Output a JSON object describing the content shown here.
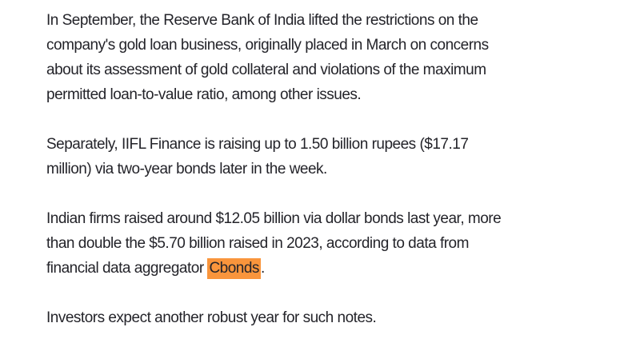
{
  "page": {
    "background_color": "#ffffff",
    "text_color": "#24242a",
    "highlight_color": "#F9953C"
  },
  "article": {
    "paragraphs": [
      {
        "lines": [
          "In September, the Reserve Bank of India lifted the restrictions on the",
          "company's gold loan business, originally placed in March on concerns",
          "about its assessment of gold collateral and violations of the maximum",
          "permitted loan-to-value ratio, among other issues."
        ]
      },
      {
        "lines": [
          "Separately, IIFL Finance is raising up to 1.50 billion rupees ($17.17",
          "million) via two-year bonds later in the week."
        ]
      },
      {
        "lines": [
          "Indian firms raised around $12.05 billion via dollar bonds last year, more",
          "than double the $5.70 billion raised in 2023, according to data from"
        ],
        "last_line": {
          "pre": "financial data aggregator ",
          "highlighted": "Cbonds",
          "post": "."
        }
      },
      {
        "lines": [
          "Investors expect another robust year for such notes."
        ]
      }
    ]
  }
}
